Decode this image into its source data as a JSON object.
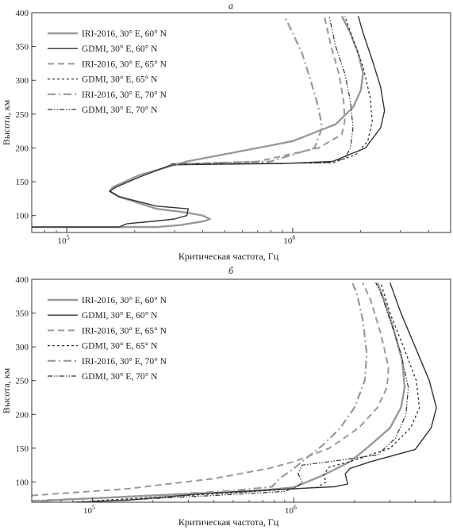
{
  "chart_data": [
    {
      "type": "line",
      "panel_label": "а",
      "xscale": "log",
      "xlim": [
        70000,
        5000000
      ],
      "ylim": [
        75,
        400
      ],
      "xlabel": "Критическая частота, Гц",
      "ylabel": "Высота, км",
      "xtick_labels": [
        "10",
        "10"
      ],
      "xtick_exponents": [
        "5",
        "6"
      ],
      "xtick_values": [
        100000,
        1000000
      ],
      "ytick_values": [
        100,
        150,
        200,
        250,
        300,
        350,
        400
      ],
      "legend_position": "top-left",
      "grid": false,
      "series": [
        {
          "name": "IRI-2016, 30° E, 60° N",
          "color": "#999999",
          "dash": "solid",
          "width": 2.4,
          "points": [
            [
              70000,
              83
            ],
            [
              250000,
              83
            ],
            [
              320000,
              86
            ],
            [
              410000,
              92
            ],
            [
              430000,
              95
            ],
            [
              400000,
              100
            ],
            [
              330000,
              105
            ],
            [
              250000,
              110
            ],
            [
              170000,
              128
            ],
            [
              155000,
              136
            ],
            [
              160000,
              142
            ],
            [
              210000,
              160
            ],
            [
              340000,
              180
            ],
            [
              700000,
              200
            ],
            [
              1000000,
              210
            ],
            [
              1550000,
              235
            ],
            [
              1850000,
              260
            ],
            [
              2000000,
              285
            ],
            [
              2050000,
              310
            ],
            [
              1950000,
              340
            ],
            [
              1800000,
              370
            ],
            [
              1650000,
              395
            ]
          ]
        },
        {
          "name": "GDMI, 30° E, 60° N",
          "color": "#333333",
          "dash": "solid",
          "width": 1.4,
          "points": [
            [
              70000,
              83
            ],
            [
              170000,
              83
            ],
            [
              185000,
              88
            ],
            [
              250000,
              92
            ],
            [
              300000,
              95
            ],
            [
              340000,
              100
            ],
            [
              345000,
              110
            ],
            [
              250000,
              114
            ],
            [
              170000,
              128
            ],
            [
              155000,
              136
            ],
            [
              165000,
              142
            ],
            [
              210000,
              157
            ],
            [
              290000,
              175
            ],
            [
              900000,
              177
            ],
            [
              1500000,
              180
            ],
            [
              2100000,
              200
            ],
            [
              2450000,
              230
            ],
            [
              2550000,
              255
            ],
            [
              2450000,
              290
            ],
            [
              2250000,
              330
            ],
            [
              2050000,
              370
            ],
            [
              1950000,
              395
            ]
          ]
        },
        {
          "name": "IRI-2016, 30° E, 65° N",
          "color": "#999999",
          "dash": "8,5",
          "width": 2.0,
          "points": [
            [
              290000,
              176
            ],
            [
              700000,
              180
            ],
            [
              1300000,
              200
            ],
            [
              1650000,
              220
            ],
            [
              1700000,
              240
            ],
            [
              1680000,
              270
            ],
            [
              1600000,
              310
            ],
            [
              1480000,
              350
            ],
            [
              1380000,
              395
            ]
          ]
        },
        {
          "name": "GDMI, 30° E, 65° N",
          "color": "#333333",
          "dash": "3,3",
          "width": 1.3,
          "points": [
            [
              290000,
              176
            ],
            [
              1500000,
              178
            ],
            [
              1900000,
              190
            ],
            [
              2150000,
              210
            ],
            [
              2250000,
              240
            ],
            [
              2200000,
              275
            ],
            [
              2050000,
              320
            ],
            [
              1850000,
              360
            ],
            [
              1700000,
              395
            ]
          ]
        },
        {
          "name": "IRI-2016, 30° E, 70° N",
          "color": "#999999",
          "dash": "10,4,2,4",
          "width": 2.2,
          "points": [
            [
              290000,
              176
            ],
            [
              800000,
              180
            ],
            [
              1250000,
              200
            ],
            [
              1350000,
              230
            ],
            [
              1300000,
              260
            ],
            [
              1200000,
              300
            ],
            [
              1100000,
              340
            ],
            [
              1000000,
              370
            ],
            [
              920000,
              395
            ]
          ]
        },
        {
          "name": "GDMI, 30° E, 70° N",
          "color": "#333333",
          "dash": "6,2,1.5,2,1.5,2",
          "width": 1.2,
          "points": [
            [
              290000,
              176
            ],
            [
              1400000,
              178
            ],
            [
              1700000,
              184
            ],
            [
              1800000,
              200
            ],
            [
              1850000,
              230
            ],
            [
              1800000,
              270
            ],
            [
              1700000,
              310
            ],
            [
              1550000,
              350
            ],
            [
              1450000,
              395
            ]
          ]
        }
      ]
    },
    {
      "type": "line",
      "panel_label": "б",
      "xscale": "log",
      "xlim": [
        50000,
        6000000
      ],
      "ylim": [
        70,
        400
      ],
      "xlabel": "Критическая частота, Гц",
      "ylabel": "Высота, км",
      "xtick_labels": [
        "10",
        "10"
      ],
      "xtick_exponents": [
        "5",
        "6"
      ],
      "xtick_values": [
        100000,
        1000000
      ],
      "ytick_values": [
        100,
        150,
        200,
        250,
        300,
        350,
        400
      ],
      "legend_position": "top-left",
      "grid": false,
      "series": [
        {
          "name": "IRI-2016, 30° E, 60° N",
          "color": "#999999",
          "dash": "solid",
          "width": 2.4,
          "points": [
            [
              55000,
              72
            ],
            [
              200000,
              80
            ],
            [
              600000,
              86
            ],
            [
              1000000,
              92
            ],
            [
              1400000,
              110
            ],
            [
              1900000,
              130
            ],
            [
              2300000,
              150
            ],
            [
              3000000,
              180
            ],
            [
              3400000,
              210
            ],
            [
              3550000,
              240
            ],
            [
              3450000,
              280
            ],
            [
              3100000,
              330
            ],
            [
              2800000,
              370
            ],
            [
              2600000,
              395
            ]
          ]
        },
        {
          "name": "GDMI, 30° E, 60° N",
          "color": "#333333",
          "dash": "solid",
          "width": 1.4,
          "points": [
            [
              80000,
              70
            ],
            [
              150000,
              73
            ],
            [
              400000,
              84
            ],
            [
              1000000,
              90
            ],
            [
              1600000,
              93
            ],
            [
              1850000,
              97
            ],
            [
              1800000,
              112
            ],
            [
              1900000,
              120
            ],
            [
              2400000,
              130
            ],
            [
              4000000,
              148
            ],
            [
              4800000,
              180
            ],
            [
              5100000,
              210
            ],
            [
              4700000,
              250
            ],
            [
              4000000,
              300
            ],
            [
              3400000,
              350
            ],
            [
              3000000,
              395
            ]
          ]
        },
        {
          "name": "IRI-2016, 30° E, 65° N",
          "color": "#999999",
          "dash": "8,5",
          "width": 2.0,
          "points": [
            [
              50000,
              80
            ],
            [
              150000,
              90
            ],
            [
              400000,
              105
            ],
            [
              750000,
              120
            ],
            [
              1000000,
              130
            ],
            [
              1500000,
              150
            ],
            [
              2100000,
              180
            ],
            [
              2600000,
              210
            ],
            [
              2900000,
              240
            ],
            [
              2950000,
              270
            ],
            [
              2700000,
              320
            ],
            [
              2400000,
              370
            ],
            [
              2200000,
              395
            ]
          ]
        },
        {
          "name": "GDMI, 30° E, 65° N",
          "color": "#333333",
          "dash": "3,3",
          "width": 1.3,
          "points": [
            [
              100000,
              72
            ],
            [
              300000,
              80
            ],
            [
              800000,
              88
            ],
            [
              1300000,
              92
            ],
            [
              1450000,
              100
            ],
            [
              1400000,
              110
            ],
            [
              1500000,
              122
            ],
            [
              1900000,
              130
            ],
            [
              3000000,
              150
            ],
            [
              3800000,
              180
            ],
            [
              4200000,
              210
            ],
            [
              4050000,
              250
            ],
            [
              3500000,
              300
            ],
            [
              3000000,
              350
            ],
            [
              2700000,
              395
            ]
          ]
        },
        {
          "name": "IRI-2016, 30° E, 70° N",
          "color": "#999999",
          "dash": "10,4,2,4",
          "width": 2.2,
          "points": [
            [
              50000,
              72
            ],
            [
              200000,
              80
            ],
            [
              500000,
              87
            ],
            [
              780000,
              93
            ],
            [
              850000,
              105
            ],
            [
              1000000,
              120
            ],
            [
              1150000,
              135
            ],
            [
              1400000,
              155
            ],
            [
              1700000,
              180
            ],
            [
              2000000,
              210
            ],
            [
              2250000,
              250
            ],
            [
              2300000,
              290
            ],
            [
              2200000,
              340
            ],
            [
              2050000,
              380
            ],
            [
              1950000,
              395
            ]
          ]
        },
        {
          "name": "GDMI, 30° E, 70° N",
          "color": "#333333",
          "dash": "6,2,1.5,2,1.5,2",
          "width": 1.2,
          "points": [
            [
              120000,
              72
            ],
            [
              400000,
              80
            ],
            [
              900000,
              86
            ],
            [
              1050000,
              94
            ],
            [
              1100000,
              100
            ],
            [
              1050000,
              112
            ],
            [
              1100000,
              125
            ],
            [
              1500000,
              130
            ],
            [
              2600000,
              140
            ],
            [
              3200000,
              165
            ],
            [
              3600000,
              200
            ],
            [
              3700000,
              240
            ],
            [
              3400000,
              290
            ],
            [
              3000000,
              340
            ],
            [
              2700000,
              380
            ],
            [
              2550000,
              395
            ]
          ]
        }
      ]
    }
  ]
}
